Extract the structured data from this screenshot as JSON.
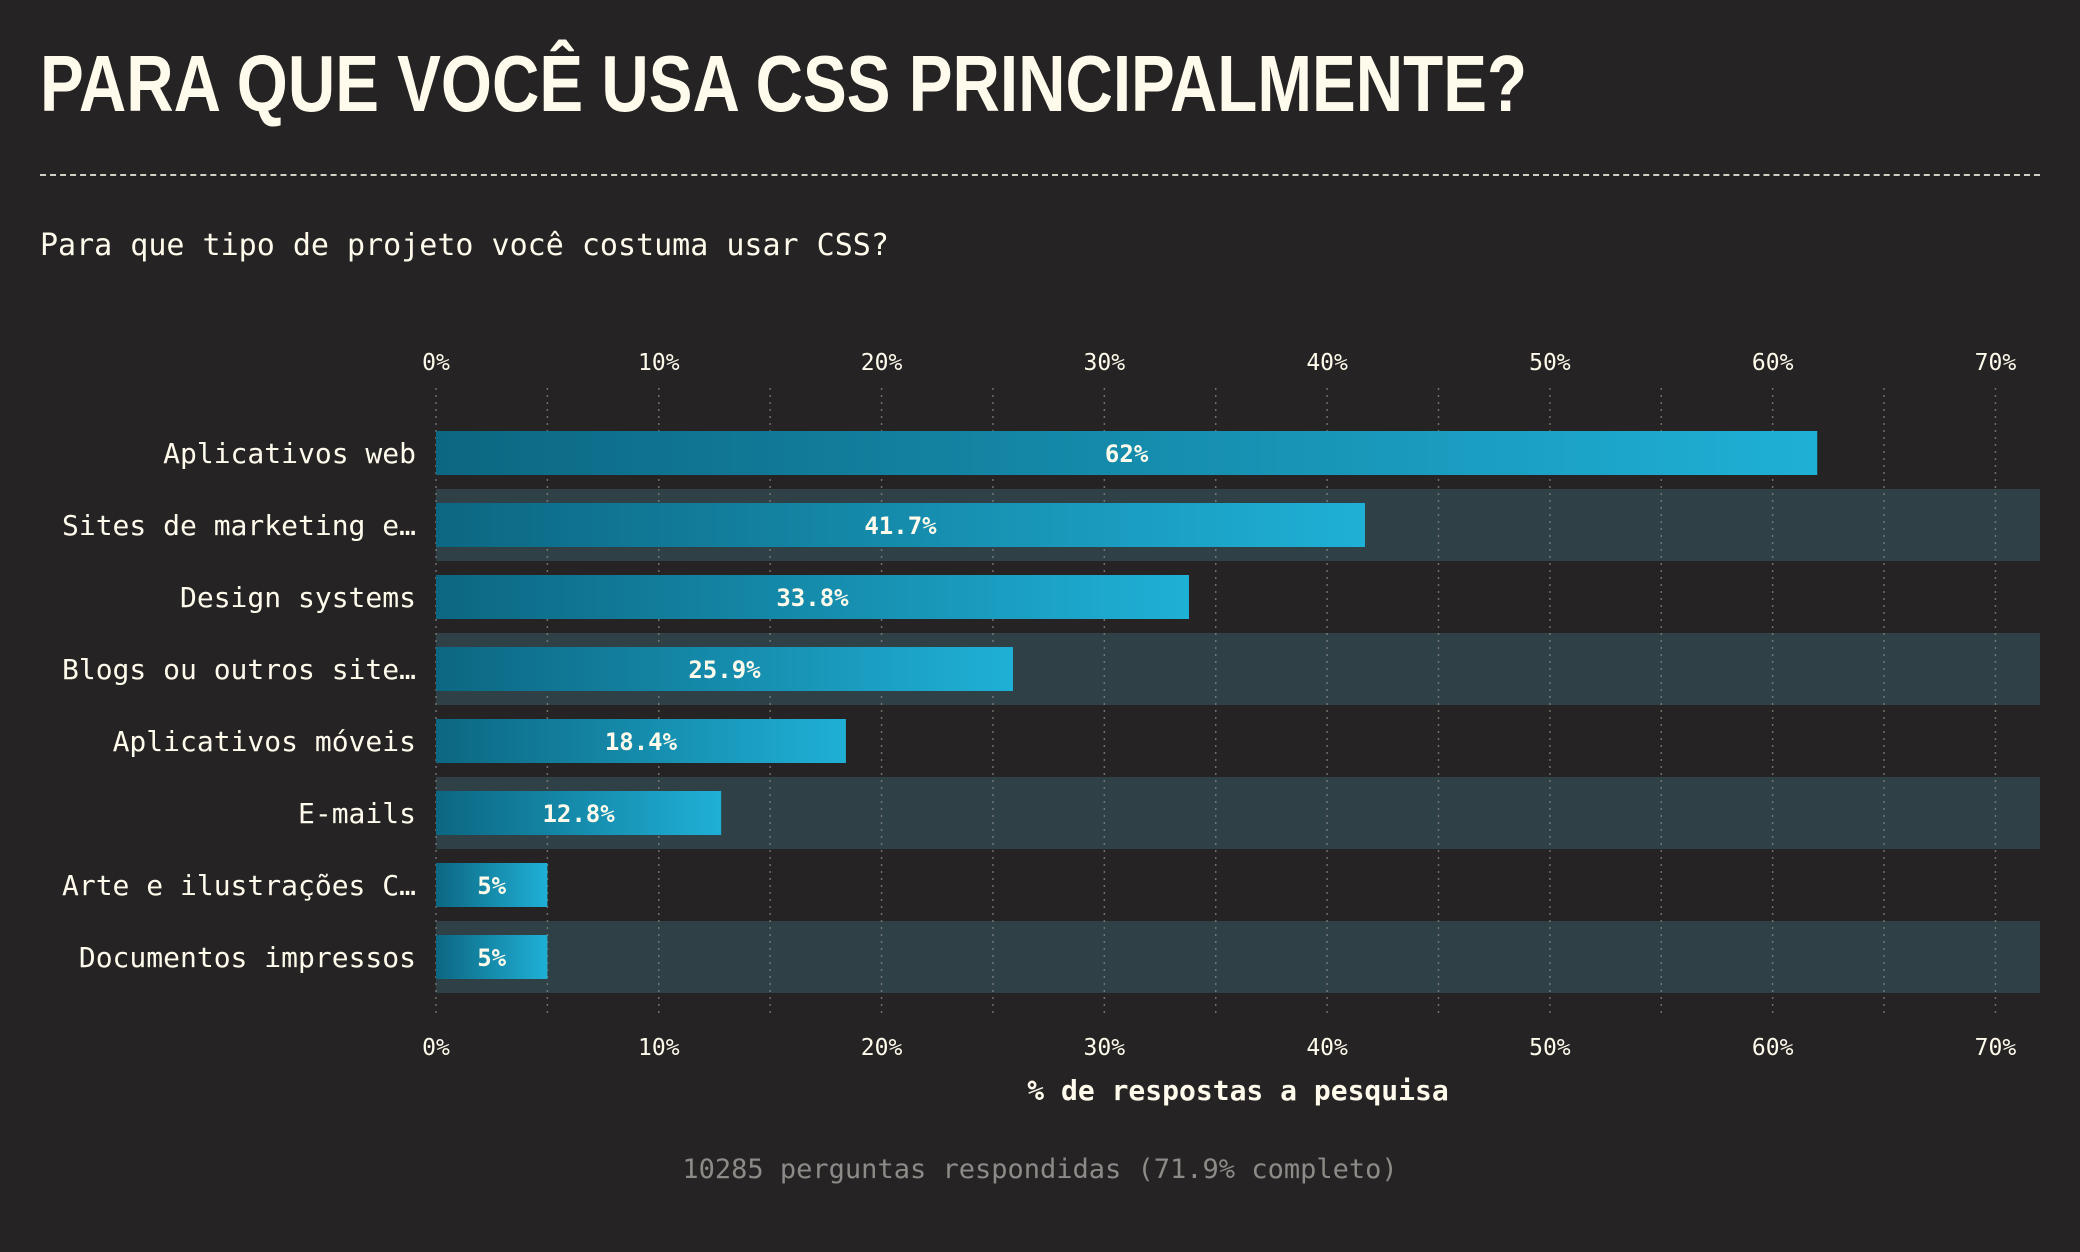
{
  "header": {
    "title": "PARA QUE VOCÊ USA CSS PRINCIPALMENTE?",
    "question": "Para que tipo de projeto você costuma usar CSS?"
  },
  "footer": {
    "summary": "10285 perguntas respondidas (71.9% completo)"
  },
  "colors": {
    "background": "#262324",
    "text": "#fffbec",
    "bar_start": "#0c6782",
    "bar_end": "#1fb0d6",
    "row_band": "#2f4146",
    "grid": "#8a8784",
    "muted": "#8d8a87"
  },
  "chart_data": {
    "type": "bar",
    "orientation": "horizontal",
    "categories": [
      "Aplicativos web",
      "Sites de marketing e…",
      "Design systems",
      "Blogs ou outros site…",
      "Aplicativos móveis",
      "E-mails",
      "Arte e ilustrações C…",
      "Documentos impressos"
    ],
    "values": [
      62,
      41.7,
      33.8,
      25.9,
      18.4,
      12.8,
      5,
      5
    ],
    "value_labels": [
      "62%",
      "41.7%",
      "33.8%",
      "25.9%",
      "18.4%",
      "12.8%",
      "5%",
      "5%"
    ],
    "xlabel": "% de respostas a pesquisa",
    "xlim": [
      0,
      72
    ],
    "ticks": [
      0,
      10,
      20,
      30,
      40,
      50,
      60,
      70
    ],
    "tick_labels": [
      "0%",
      "10%",
      "20%",
      "30%",
      "40%",
      "50%",
      "60%",
      "70%"
    ],
    "axis_position": "top-and-bottom",
    "grid": true,
    "alternating_row_bands": true
  }
}
